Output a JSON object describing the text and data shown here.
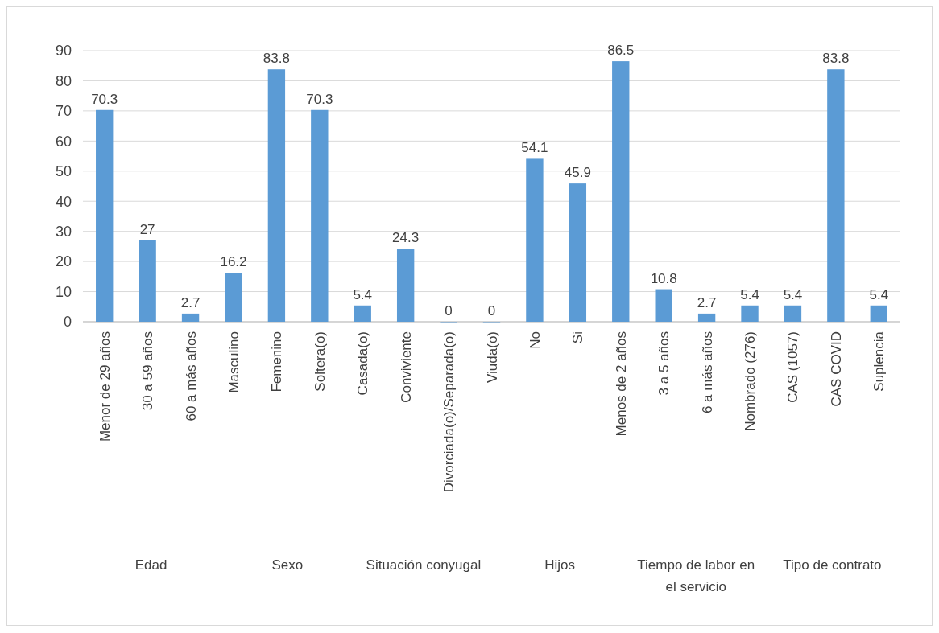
{
  "chart_data": {
    "type": "bar",
    "categories": [
      "Menor de 29 años",
      "30 a 59 años",
      "60 a más años",
      "Masculino",
      "Femenino",
      "Soltera(o)",
      "Casada(o)",
      "Conviviente",
      "Divorciada(o)/Separada(o)",
      "Viuda(o)",
      "No",
      "Si",
      "Menos de 2 años",
      "3 a 5 años",
      "6 a más años",
      "Nombrado (276)",
      "CAS (1057)",
      "CAS COVID",
      "Suplencia"
    ],
    "values": [
      70.3,
      27,
      2.7,
      16.2,
      83.8,
      70.3,
      5.4,
      24.3,
      0,
      0,
      54.1,
      45.9,
      86.5,
      10.8,
      2.7,
      5.4,
      5.4,
      83.8,
      5.4
    ],
    "color": "#5b9bd5",
    "ylim": [
      0,
      90
    ],
    "yticks": [
      0,
      10,
      20,
      30,
      40,
      50,
      60,
      70,
      80,
      90
    ],
    "grid": "y",
    "data_labels": true,
    "annotations": [
      "Edad",
      "Sexo",
      "Situación conyugal",
      "Hijos",
      "Tiempo de labor en el servicio",
      "Tipo de contrato"
    ]
  }
}
